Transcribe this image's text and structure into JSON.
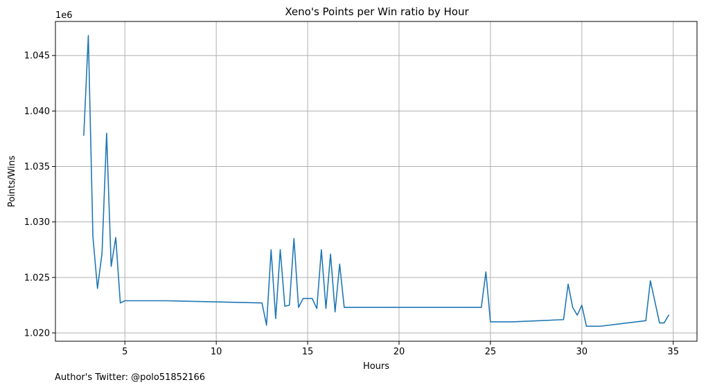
{
  "chart_data": {
    "type": "line",
    "title": "Xeno's Points per Win ratio by Hour",
    "xlabel": "Hours",
    "ylabel": "Points/Wins",
    "y_offset_label": "1e6",
    "xlim": [
      1.2,
      36.3
    ],
    "ylim": [
      1.01925,
      1.04807
    ],
    "x_ticks": [
      5,
      10,
      15,
      20,
      25,
      30,
      35
    ],
    "x_tick_labels": [
      "5",
      "10",
      "15",
      "20",
      "25",
      "30",
      "35"
    ],
    "y_ticks": [
      1.02,
      1.025,
      1.03,
      1.035,
      1.04,
      1.045
    ],
    "y_tick_labels": [
      "1.020",
      "1.025",
      "1.030",
      "1.035",
      "1.040",
      "1.045"
    ],
    "grid": true,
    "series_color": "#1f77b4",
    "grid_color": "#b0b0b0",
    "series": [
      {
        "x": [
          2.75,
          3.0,
          3.25,
          3.5,
          3.75,
          4.0,
          4.25,
          4.5,
          4.75,
          5.0,
          7.25,
          12.5,
          12.75,
          13.0,
          13.25,
          13.5,
          13.75,
          14.0,
          14.25,
          14.5,
          14.75,
          15.0,
          15.25,
          15.5,
          15.75,
          16.0,
          16.25,
          16.5,
          16.75,
          17.0,
          24.5,
          24.75,
          25.0,
          26.25,
          29.0,
          29.25,
          29.5,
          29.75,
          30.0,
          30.25,
          31.0,
          33.5,
          33.75,
          34.25,
          34.5,
          34.75
        ],
        "values": [
          1.0378,
          1.0468,
          1.0287,
          1.024,
          1.0272,
          1.038,
          1.026,
          1.0286,
          1.0227,
          1.0229,
          1.0229,
          1.0227,
          1.0207,
          1.0275,
          1.0213,
          1.0275,
          1.0224,
          1.0225,
          1.0285,
          1.0223,
          1.0231,
          1.0231,
          1.0231,
          1.0222,
          1.0275,
          1.0222,
          1.0271,
          1.0219,
          1.0262,
          1.0223,
          1.0223,
          1.0255,
          1.021,
          1.021,
          1.0212,
          1.0244,
          1.0223,
          1.0216,
          1.0225,
          1.0206,
          1.0206,
          1.0211,
          1.0247,
          1.0209,
          1.0209,
          1.0216
        ]
      }
    ]
  },
  "footer": {
    "text": "Author's Twitter: @polo51852166"
  }
}
